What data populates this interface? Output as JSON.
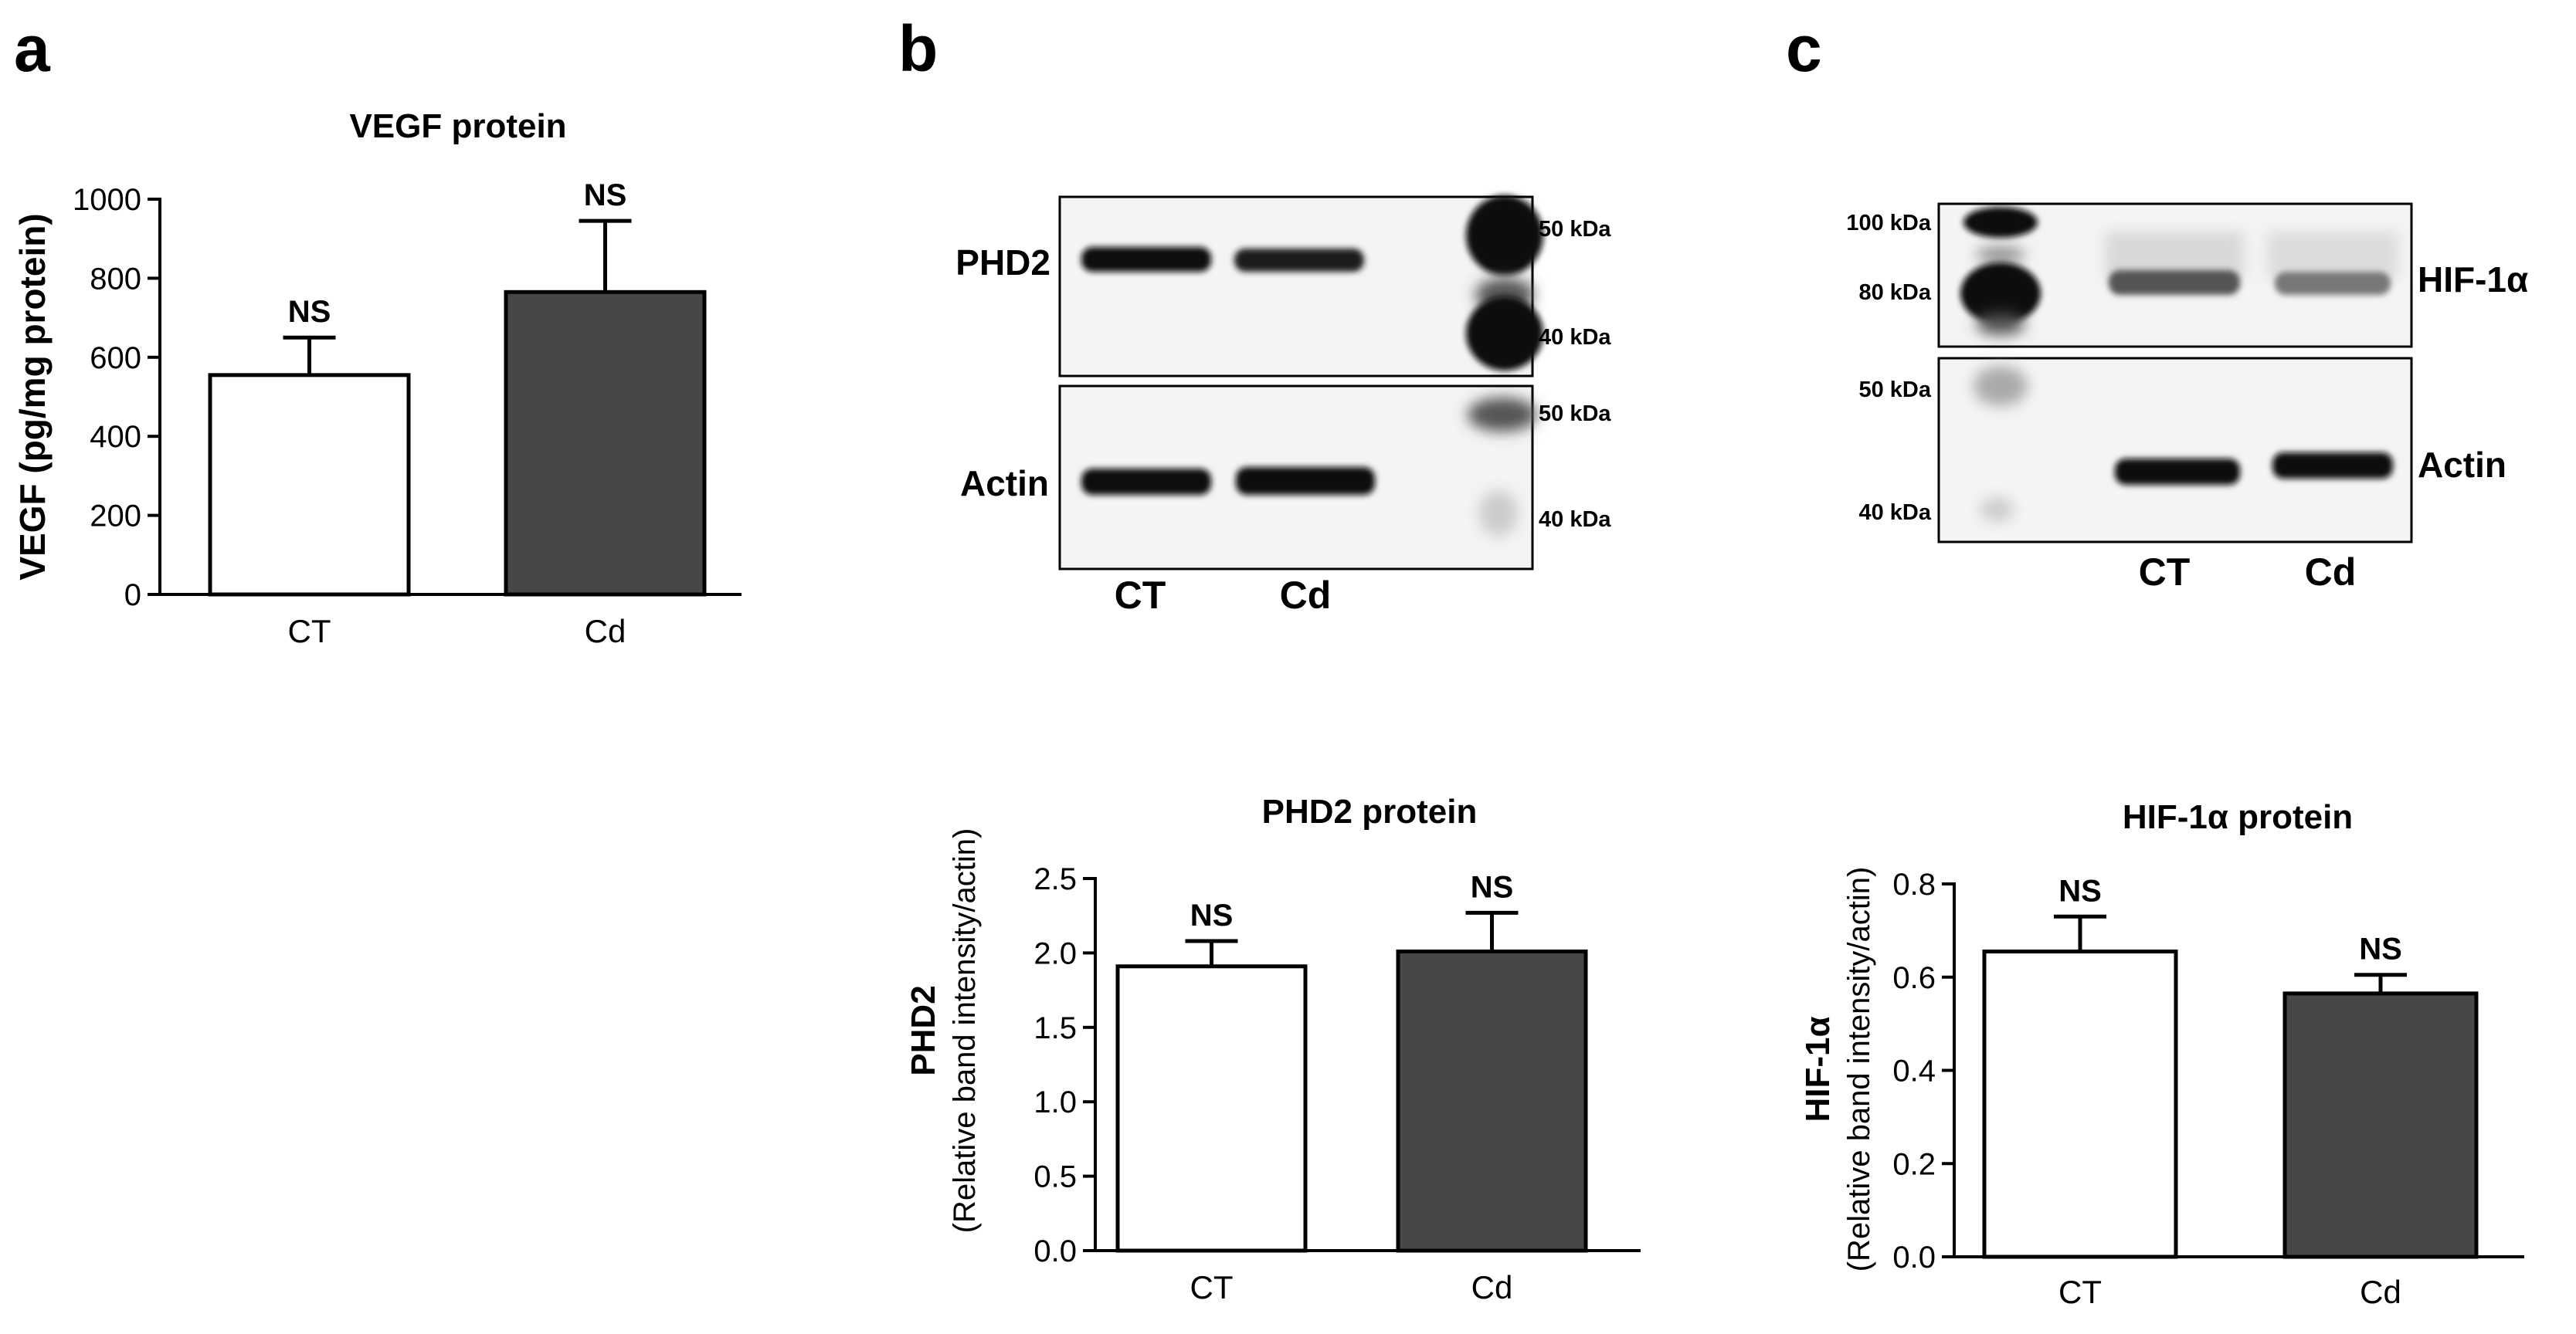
{
  "panels": {
    "a": {
      "letter": "a"
    },
    "b": {
      "letter": "b",
      "blot": {
        "top_label": "PHD2",
        "bottom_label": "Actin",
        "markers_top": [
          "50 kDa",
          "40 kDa"
        ],
        "markers_bottom": [
          "50 kDa",
          "40 kDa"
        ],
        "lanes": [
          "CT",
          "Cd"
        ]
      }
    },
    "c": {
      "letter": "c",
      "blot": {
        "top_label": "HIF-1α",
        "bottom_label": "Actin",
        "markers_top": [
          "100 kDa",
          "80 kDa"
        ],
        "markers_bottom": [
          "50 kDa",
          "40 kDa"
        ],
        "lanes": [
          "CT",
          "Cd"
        ]
      }
    }
  },
  "colors": {
    "ct_fill": "#ffffff",
    "cd_fill": "#474747",
    "axis": "#000000",
    "blot_bg": "#f4f4f4",
    "band": "#111111"
  },
  "chart_data": [
    {
      "id": "vegf",
      "type": "bar",
      "title": "VEGF protein",
      "ylabel": "VEGF (pg/mg protein)",
      "ylabel_sub": "",
      "categories": [
        "CT",
        "Cd"
      ],
      "values": [
        555,
        765
      ],
      "errors": [
        95,
        180
      ],
      "annotations": [
        "NS",
        "NS"
      ],
      "ylim": [
        0,
        1000
      ],
      "yticks": [
        0,
        200,
        400,
        600,
        800,
        1000
      ],
      "ytick_labels": [
        "0",
        "200",
        "400",
        "600",
        "800",
        "1000"
      ]
    },
    {
      "id": "phd2",
      "type": "bar",
      "title": "PHD2 protein",
      "ylabel": "PHD2",
      "ylabel_sub": "(Relative band intensity/actin)",
      "categories": [
        "CT",
        "Cd"
      ],
      "values": [
        1.91,
        2.01
      ],
      "errors": [
        0.17,
        0.26
      ],
      "annotations": [
        "NS",
        "NS"
      ],
      "ylim": [
        0,
        2.5
      ],
      "yticks": [
        0,
        0.5,
        1.0,
        1.5,
        2.0,
        2.5
      ],
      "ytick_labels": [
        "0.0",
        "0.5",
        "1.0",
        "1.5",
        "2.0",
        "2.5"
      ]
    },
    {
      "id": "hif1a",
      "type": "bar",
      "title": "HIF-1α protein",
      "ylabel": "HIF-1α",
      "ylabel_sub": "(Relative band intensity/actin)",
      "categories": [
        "CT",
        "Cd"
      ],
      "values": [
        0.655,
        0.565
      ],
      "errors": [
        0.075,
        0.04
      ],
      "annotations": [
        "NS",
        "NS"
      ],
      "ylim": [
        0,
        0.8
      ],
      "yticks": [
        0,
        0.2,
        0.4,
        0.6,
        0.8
      ],
      "ytick_labels": [
        "0.0",
        "0.2",
        "0.4",
        "0.6",
        "0.8"
      ]
    }
  ]
}
